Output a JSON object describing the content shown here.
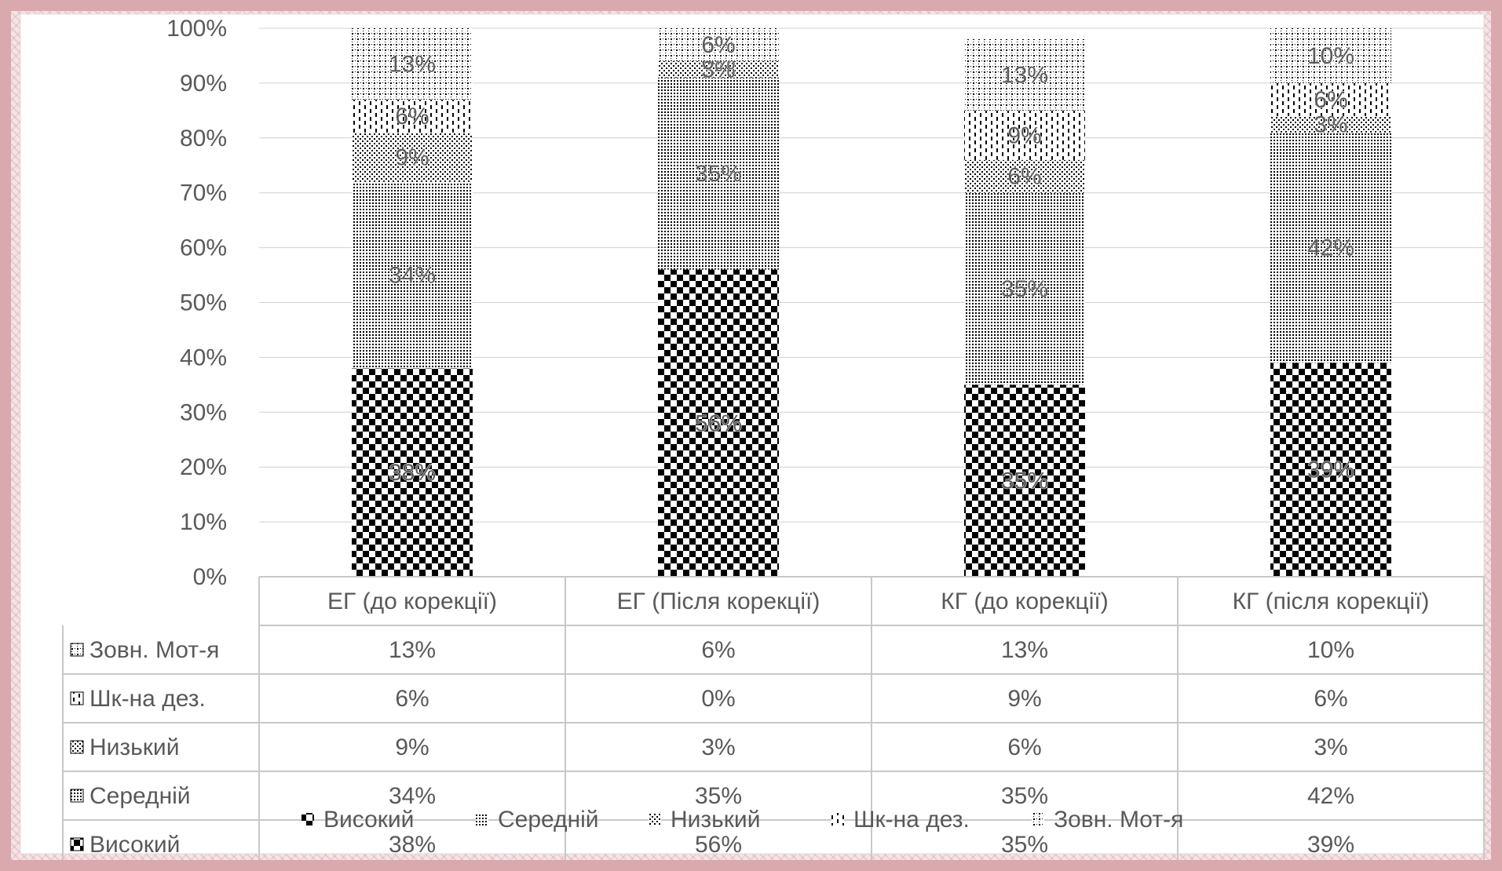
{
  "chart_data": {
    "type": "bar",
    "stacked": true,
    "percent": true,
    "categories": [
      "ЕГ (до корекції)",
      "ЕГ (Після корекції)",
      "КГ (до корекції)",
      "КГ (після корекції)"
    ],
    "series": [
      {
        "name": "Високий",
        "pattern": "checker",
        "values": [
          38,
          56,
          35,
          39
        ]
      },
      {
        "name": "Середній",
        "pattern": "dense-dots",
        "values": [
          34,
          35,
          35,
          42
        ]
      },
      {
        "name": "Низький",
        "pattern": "sparse-dots",
        "values": [
          9,
          3,
          6,
          3
        ]
      },
      {
        "name": "Шк-на дез.",
        "pattern": "dashes",
        "values": [
          6,
          0,
          9,
          6
        ]
      },
      {
        "name": "Зовн. Мот-я",
        "pattern": "dotted-grid",
        "values": [
          13,
          6,
          13,
          10
        ]
      }
    ],
    "ylim": [
      0,
      100
    ],
    "yticks": [
      "0%",
      "10%",
      "20%",
      "30%",
      "40%",
      "50%",
      "60%",
      "70%",
      "80%",
      "90%",
      "100%"
    ],
    "value_suffix": "%",
    "grid": true,
    "data_table": true,
    "legend": "bottom",
    "colors": {
      "ink": "#000000",
      "grid": "#d0d0d0",
      "table": "#c8c8c8",
      "text": "#595959",
      "plot_bg": "#ffffff"
    }
  }
}
